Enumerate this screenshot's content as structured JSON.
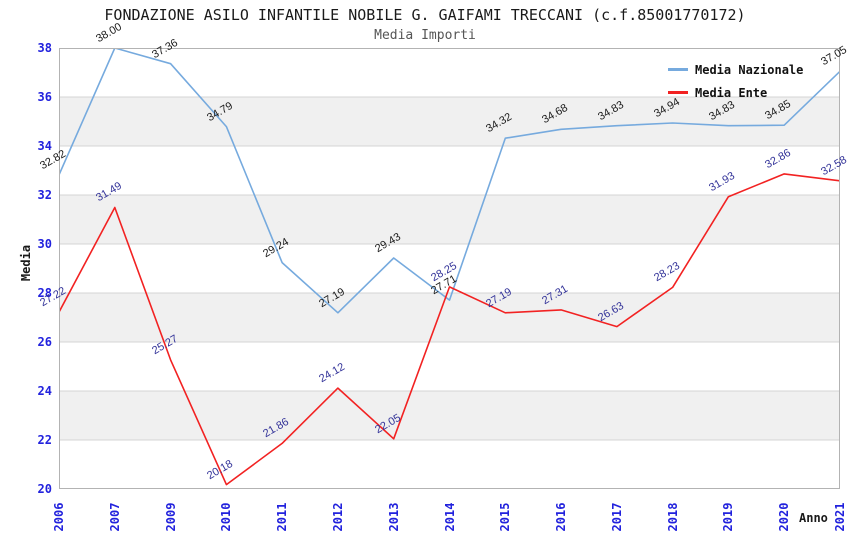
{
  "header": {
    "title": "FONDAZIONE ASILO INFANTILE NOBILE G. GAIFAMI TRECCANI (c.f.85001770172)",
    "subtitle": "Media Importi"
  },
  "chart_data": {
    "type": "line",
    "title": "FONDAZIONE ASILO INFANTILE NOBILE G. GAIFAMI TRECCANI (c.f.85001770172)",
    "subtitle": "Media Importi",
    "xlabel": "Anno",
    "ylabel": "Media",
    "ylim": [
      20,
      38
    ],
    "y_tick_step": 2,
    "grid": "horizontal gridlines with alternating gray bands",
    "legend_position": "top-right",
    "categories": [
      "2006",
      "2007",
      "2009",
      "2010",
      "2011",
      "2012",
      "2013",
      "2014",
      "2015",
      "2016",
      "2017",
      "2018",
      "2019",
      "2020",
      "2021"
    ],
    "series": [
      {
        "name": "Media Nazionale",
        "color": "#76aade",
        "label_color": "#1a1a1a",
        "values": [
          "32.82",
          "38.00",
          "37.36",
          "34.79",
          "29.24",
          "27.19",
          "29.43",
          "27.71",
          "34.32",
          "34.68",
          "34.83",
          "34.94",
          "34.83",
          "34.85",
          "37.05"
        ]
      },
      {
        "name": "Media Ente",
        "color": "#f22222",
        "label_color": "#333399",
        "values": [
          "27.22",
          "31.49",
          "25.27",
          "20.18",
          "21.86",
          "24.12",
          "22.05",
          "28.25",
          "27.19",
          "27.31",
          "26.63",
          "28.23",
          "31.93",
          "32.86",
          "32.58"
        ]
      }
    ],
    "colors": {
      "tick_label": "#2222dd",
      "band_fill": "#f0f0f0",
      "gridline": "#d4d4d4",
      "plot_border": "#b3b3b3"
    }
  }
}
